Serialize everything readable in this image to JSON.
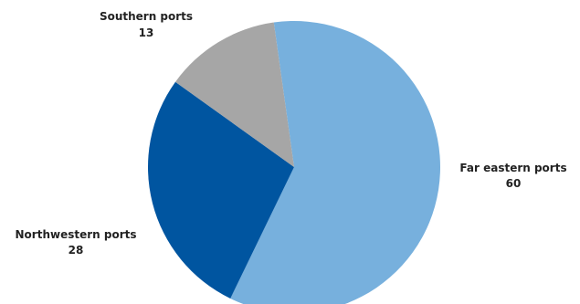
{
  "chart_data": {
    "type": "pie",
    "title": "",
    "slices": [
      {
        "label": "Far eastern ports",
        "value": 60,
        "display": "60",
        "color": "#77b0dd"
      },
      {
        "label": "Northwestern ports",
        "value": 28,
        "display": "28",
        "color": "#0055a0"
      },
      {
        "label": "Southern ports",
        "value": 13,
        "display": "13",
        "color": "#a6a6a6"
      }
    ]
  }
}
